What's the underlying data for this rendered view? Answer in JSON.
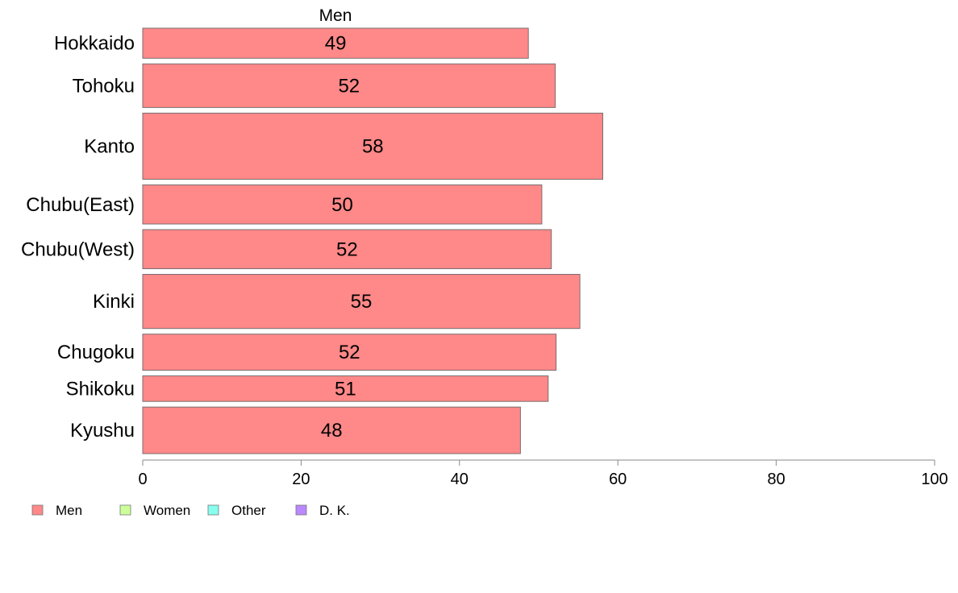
{
  "chart_data": {
    "type": "bar",
    "orientation": "horizontal",
    "title": "Men",
    "categories": [
      "Hokkaido",
      "Tohoku",
      "Kanto",
      "Chubu(East)",
      "Chubu(West)",
      "Kinki",
      "Chugoku",
      "Shikoku",
      "Kyushu"
    ],
    "series": [
      {
        "name": "Men",
        "values": [
          48.7,
          52.1,
          58.1,
          50.4,
          51.6,
          55.2,
          52.2,
          51.2,
          47.7
        ],
        "labels": [
          "49",
          "52",
          "58",
          "50",
          "52",
          "55",
          "52",
          "51",
          "48"
        ],
        "color": "#ff8888"
      }
    ],
    "category_weights": [
      1.0,
      1.45,
      2.2,
      1.3,
      1.3,
      1.8,
      1.2,
      0.85,
      1.55
    ],
    "xlim": [
      0,
      100
    ],
    "xticks": [
      0,
      20,
      40,
      60,
      80,
      100
    ],
    "grid": false,
    "legend": {
      "position": "bottom-left",
      "items": [
        {
          "label": "Men",
          "color": "#ff8888"
        },
        {
          "label": "Women",
          "color": "#ccff99"
        },
        {
          "label": "Other",
          "color": "#88ffee"
        },
        {
          "label": "D. K.",
          "color": "#bb88ff"
        }
      ]
    }
  }
}
